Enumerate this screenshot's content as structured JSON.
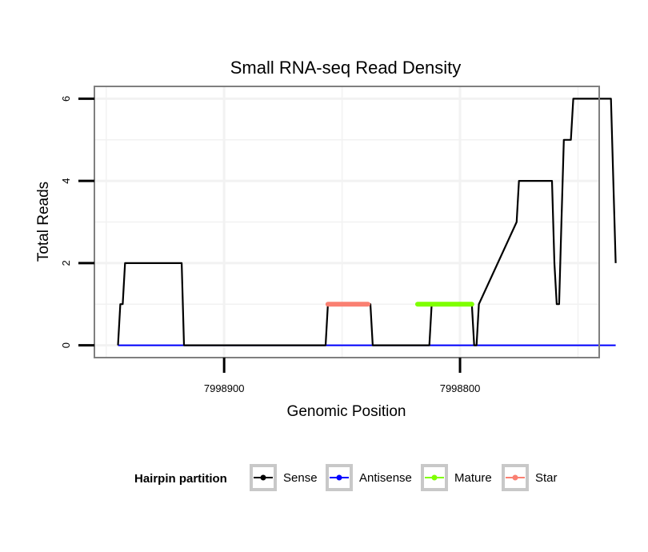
{
  "chart_data": {
    "type": "line",
    "title": "Small RNA-seq Read Density",
    "xlabel": "Genomic Position",
    "ylabel": "Total Reads",
    "x_reversed": true,
    "xlim": [
      7998955,
      7998741
    ],
    "ylim": [
      -0.3,
      6.3
    ],
    "x_ticks": [
      7998900,
      7998800
    ],
    "x_tick_labels": [
      "7998900",
      "7998800"
    ],
    "y_ticks": [
      0,
      2,
      4,
      6
    ],
    "y_tick_labels": [
      "0",
      "2",
      "4",
      "6"
    ],
    "grid": true,
    "legend": {
      "title": "Hairpin partition",
      "position": "bottom",
      "entries": [
        {
          "label": "Sense",
          "color": "#000000"
        },
        {
          "label": "Antisense",
          "color": "#0000ff"
        },
        {
          "label": "Mature",
          "color": "#7fff00"
        },
        {
          "label": "Star",
          "color": "#fa8072"
        }
      ]
    },
    "series": [
      {
        "name": "Sense",
        "color": "#000000",
        "x": [
          7998945,
          7998944,
          7998943,
          7998942,
          7998918,
          7998917,
          7998857,
          7998856,
          7998838,
          7998837,
          7998813,
          7998812,
          7998795,
          7998794,
          7998793,
          7998792,
          7998776,
          7998775,
          7998761,
          7998760,
          7998759,
          7998758,
          7998757,
          7998756,
          7998753,
          7998752,
          7998736,
          7998734
        ],
        "y": [
          0,
          1,
          1,
          2,
          2,
          0,
          0,
          1,
          1,
          0,
          0,
          1,
          1,
          0,
          0,
          1,
          3,
          4,
          4,
          2,
          1,
          1,
          3,
          5,
          5,
          6,
          6,
          2
        ]
      },
      {
        "name": "Antisense",
        "color": "#0000ff",
        "x": [
          7998945,
          7998734
        ],
        "y": [
          0,
          0
        ]
      },
      {
        "name": "Mature",
        "color": "#7fff00",
        "x": [
          7998818,
          7998795
        ],
        "y": [
          1,
          1
        ]
      },
      {
        "name": "Star",
        "color": "#fa8072",
        "x": [
          7998856,
          7998839
        ],
        "y": [
          1,
          1
        ]
      }
    ]
  }
}
